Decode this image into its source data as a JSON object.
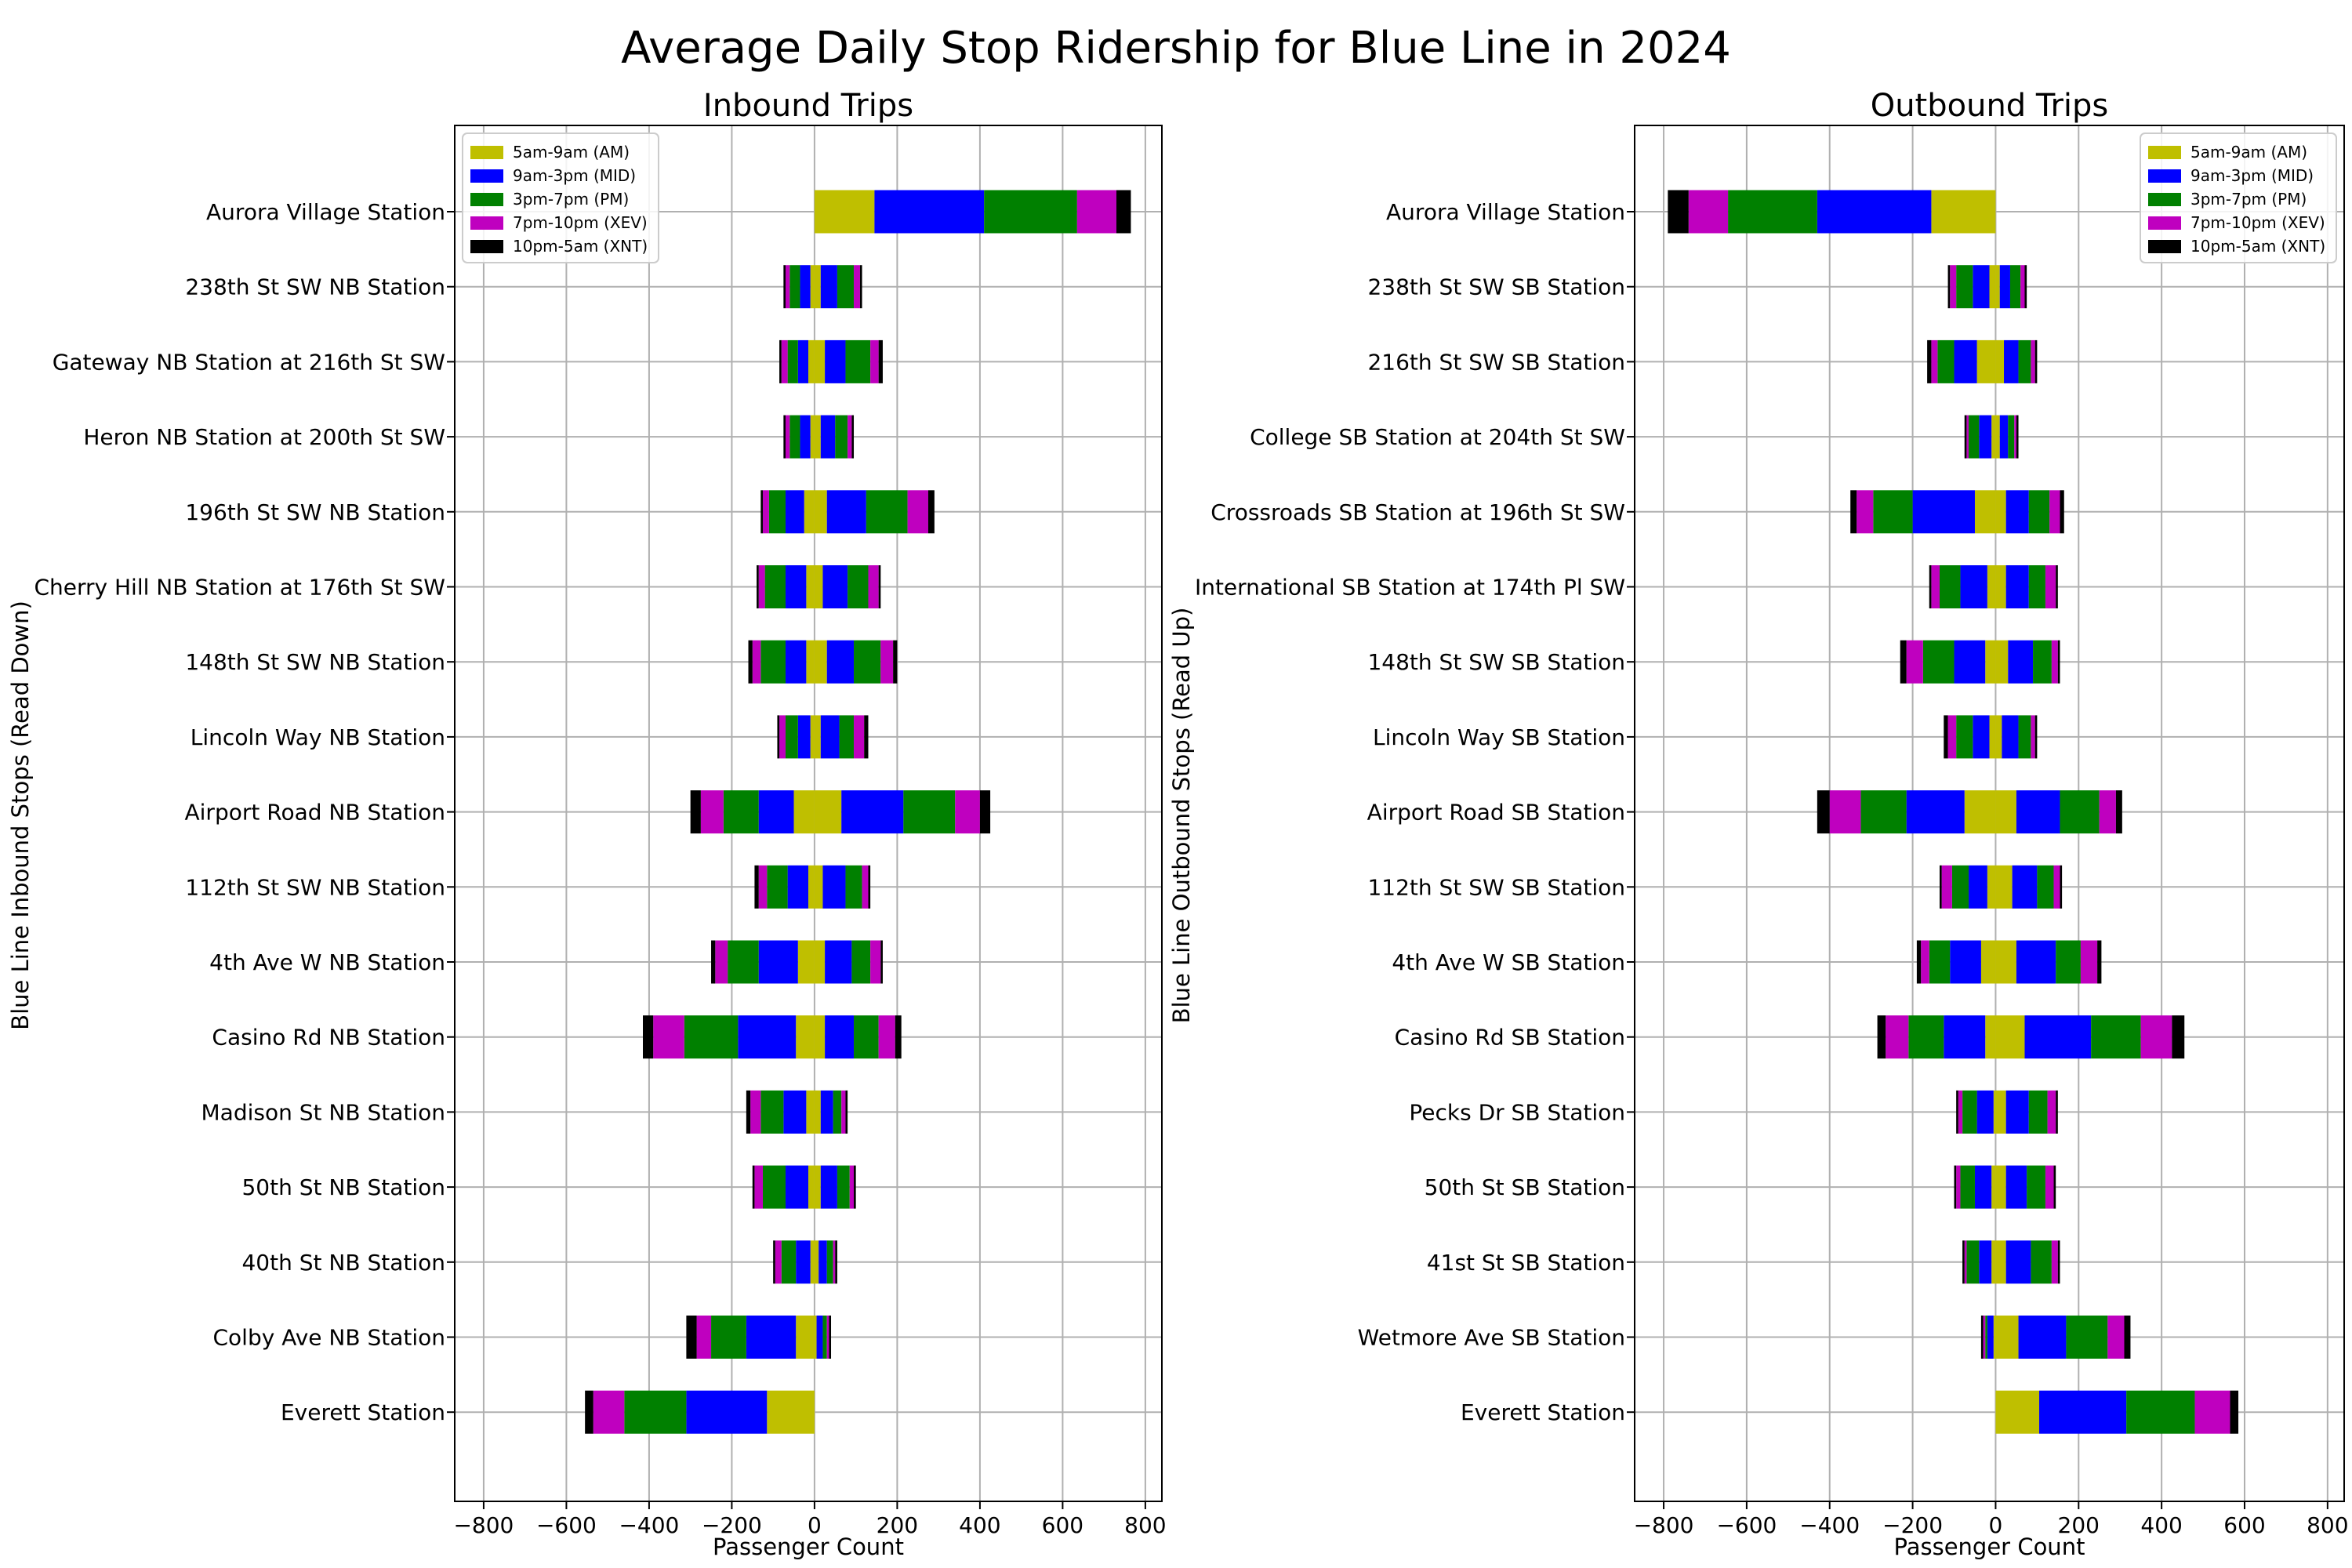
{
  "title": "Average Daily Stop Ridership for Blue Line in 2024",
  "colors": {
    "AM": "#bfbf00",
    "MID": "#0000ff",
    "PM": "#008000",
    "XEV": "#bf00bf",
    "XNT": "#000000"
  },
  "legend_labels": [
    "5am-9am (AM)",
    "9am-3pm (MID)",
    "3pm-7pm (PM)",
    "7pm-10pm (XEV)",
    "10pm-5am (XNT)"
  ],
  "chart_data": [
    {
      "type": "bar",
      "orientation": "horizontal-diverging",
      "title": "Inbound Trips",
      "xlabel": "Passenger Count",
      "ylabel": "Blue Line Inbound Stops (Read Down)",
      "xlim": [
        -870,
        840
      ],
      "xticks": [
        -800,
        -600,
        -400,
        -200,
        0,
        200,
        400,
        600,
        800
      ],
      "grid": true,
      "legend_position": "top-left",
      "stops": [
        {
          "name": "Aurora Village Station",
          "boarding": [
            145,
            265,
            225,
            95,
            35
          ],
          "alighting": [
            0,
            0,
            0,
            0,
            0
          ]
        },
        {
          "name": "238th St SW NB Station",
          "boarding": [
            15,
            40,
            40,
            15,
            5
          ],
          "alighting": [
            10,
            25,
            25,
            10,
            5
          ]
        },
        {
          "name": "Gateway NB Station at 216th St SW",
          "boarding": [
            25,
            50,
            60,
            20,
            10
          ],
          "alighting": [
            15,
            25,
            25,
            15,
            5
          ]
        },
        {
          "name": "Heron NB Station at 200th St SW",
          "boarding": [
            15,
            35,
            30,
            10,
            5
          ],
          "alighting": [
            10,
            25,
            25,
            10,
            5
          ]
        },
        {
          "name": "196th St SW NB Station",
          "boarding": [
            30,
            95,
            100,
            50,
            15
          ],
          "alighting": [
            25,
            45,
            40,
            15,
            5
          ]
        },
        {
          "name": "Cherry Hill NB Station at 176th St SW",
          "boarding": [
            20,
            60,
            50,
            25,
            5
          ],
          "alighting": [
            20,
            50,
            50,
            15,
            5
          ]
        },
        {
          "name": "148th St SW NB Station",
          "boarding": [
            30,
            65,
            65,
            30,
            10
          ],
          "alighting": [
            20,
            50,
            60,
            20,
            10
          ]
        },
        {
          "name": "Lincoln Way NB Station",
          "boarding": [
            15,
            45,
            35,
            25,
            10
          ],
          "alighting": [
            10,
            30,
            30,
            15,
            5
          ]
        },
        {
          "name": "Airport Road NB Station",
          "boarding": [
            65,
            150,
            125,
            60,
            25
          ],
          "alighting": [
            50,
            85,
            85,
            55,
            25
          ]
        },
        {
          "name": "112th St SW NB Station",
          "boarding": [
            20,
            55,
            40,
            15,
            5
          ],
          "alighting": [
            15,
            50,
            50,
            20,
            10
          ]
        },
        {
          "name": "4th Ave W NB Station",
          "boarding": [
            25,
            65,
            45,
            25,
            5
          ],
          "alighting": [
            40,
            95,
            75,
            30,
            10
          ]
        },
        {
          "name": "Casino Rd NB Station",
          "boarding": [
            25,
            70,
            60,
            40,
            15
          ],
          "alighting": [
            45,
            140,
            130,
            75,
            25
          ]
        },
        {
          "name": "Madison St NB Station",
          "boarding": [
            15,
            30,
            20,
            10,
            5
          ],
          "alighting": [
            20,
            55,
            55,
            25,
            10
          ]
        },
        {
          "name": "50th St NB Station",
          "boarding": [
            15,
            40,
            30,
            10,
            5
          ],
          "alighting": [
            15,
            55,
            55,
            20,
            5
          ]
        },
        {
          "name": "40th St NB Station",
          "boarding": [
            10,
            20,
            15,
            5,
            5
          ],
          "alighting": [
            10,
            35,
            35,
            15,
            5
          ]
        },
        {
          "name": "Colby Ave NB Station",
          "boarding": [
            5,
            15,
            10,
            5,
            5
          ],
          "alighting": [
            45,
            120,
            85,
            35,
            25
          ]
        },
        {
          "name": "Everett Station",
          "boarding": [
            0,
            0,
            0,
            0,
            0
          ],
          "alighting": [
            115,
            195,
            150,
            75,
            20
          ]
        }
      ]
    },
    {
      "type": "bar",
      "orientation": "horizontal-diverging",
      "title": "Outbound Trips",
      "xlabel": "Passenger Count",
      "ylabel": "Blue Line Outbound Stops (Read Up)",
      "xlim": [
        -870,
        840
      ],
      "xticks": [
        -800,
        -600,
        -400,
        -200,
        0,
        200,
        400,
        600,
        800
      ],
      "grid": true,
      "legend_position": "top-right",
      "stops": [
        {
          "name": "Aurora Village Station",
          "boarding": [
            0,
            0,
            0,
            0,
            0
          ],
          "alighting": [
            155,
            275,
            215,
            95,
            50
          ]
        },
        {
          "name": "238th St SW SB Station",
          "boarding": [
            10,
            25,
            25,
            10,
            5
          ],
          "alighting": [
            15,
            40,
            40,
            15,
            5
          ]
        },
        {
          "name": "216th St SW SB Station",
          "boarding": [
            20,
            35,
            30,
            10,
            5
          ],
          "alighting": [
            45,
            55,
            40,
            15,
            10
          ]
        },
        {
          "name": "College SB Station at 204th St SW",
          "boarding": [
            10,
            20,
            15,
            5,
            5
          ],
          "alighting": [
            10,
            30,
            25,
            5,
            5
          ]
        },
        {
          "name": "Crossroads SB Station at 196th St SW",
          "boarding": [
            25,
            55,
            50,
            25,
            10
          ],
          "alighting": [
            50,
            150,
            95,
            40,
            15
          ]
        },
        {
          "name": "International SB Station at 174th Pl SW",
          "boarding": [
            25,
            55,
            40,
            25,
            5
          ],
          "alighting": [
            20,
            65,
            50,
            20,
            5
          ]
        },
        {
          "name": "148th St SW SB Station",
          "boarding": [
            30,
            60,
            45,
            15,
            5
          ],
          "alighting": [
            25,
            75,
            75,
            40,
            15
          ]
        },
        {
          "name": "Lincoln Way SB Station",
          "boarding": [
            15,
            40,
            30,
            10,
            5
          ],
          "alighting": [
            15,
            40,
            40,
            20,
            10
          ]
        },
        {
          "name": "Airport Road SB Station",
          "boarding": [
            50,
            105,
            95,
            40,
            15
          ],
          "alighting": [
            75,
            140,
            110,
            75,
            30
          ]
        },
        {
          "name": "112th St SW SB Station",
          "boarding": [
            40,
            60,
            40,
            15,
            5
          ],
          "alighting": [
            20,
            45,
            40,
            25,
            5
          ]
        },
        {
          "name": "4th Ave W SB Station",
          "boarding": [
            50,
            95,
            60,
            40,
            10
          ],
          "alighting": [
            35,
            75,
            50,
            20,
            10
          ]
        },
        {
          "name": "Casino Rd SB Station",
          "boarding": [
            70,
            160,
            120,
            75,
            30
          ],
          "alighting": [
            25,
            100,
            85,
            55,
            20
          ]
        },
        {
          "name": "Pecks Dr SB Station",
          "boarding": [
            25,
            55,
            45,
            20,
            5
          ],
          "alighting": [
            5,
            40,
            35,
            10,
            5
          ]
        },
        {
          "name": "50th St SB Station",
          "boarding": [
            25,
            50,
            45,
            20,
            5
          ],
          "alighting": [
            10,
            40,
            35,
            10,
            5
          ]
        },
        {
          "name": "41st St SB Station",
          "boarding": [
            25,
            60,
            50,
            15,
            5
          ],
          "alighting": [
            10,
            30,
            30,
            5,
            5
          ]
        },
        {
          "name": "Wetmore Ave SB Station",
          "boarding": [
            55,
            115,
            100,
            40,
            15
          ],
          "alighting": [
            5,
            15,
            5,
            5,
            5
          ]
        },
        {
          "name": "Everett Station",
          "boarding": [
            105,
            210,
            165,
            85,
            20
          ],
          "alighting": [
            0,
            0,
            0,
            0,
            0
          ]
        }
      ]
    }
  ]
}
